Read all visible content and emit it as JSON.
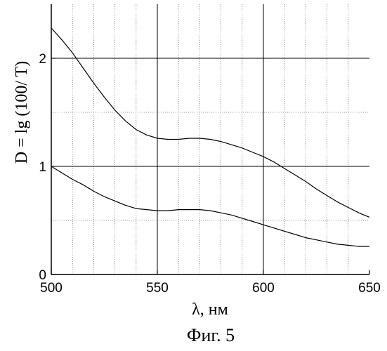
{
  "chart_data": {
    "type": "line",
    "xlabel": "λ, нм",
    "ylabel": "D = lg (100/ T)",
    "caption": "Фиг. 5",
    "xlim": [
      500,
      650
    ],
    "ylim": [
      0,
      2.5
    ],
    "x_ticks": [
      500,
      550,
      600,
      650
    ],
    "y_ticks": [
      0,
      1,
      2
    ],
    "major_grid_x": [
      550,
      600
    ],
    "major_grid_y": [
      1,
      2
    ],
    "minor_grid_x": [
      510,
      520,
      530,
      540,
      560,
      570,
      580,
      590,
      610,
      620,
      630,
      640
    ],
    "minor_grid_y": [
      0.5,
      1.5
    ],
    "series": [
      {
        "x": [
          500,
          505,
          510,
          515,
          520,
          525,
          530,
          535,
          540,
          545,
          550,
          555,
          560,
          565,
          570,
          575,
          580,
          585,
          590,
          595,
          600,
          605,
          610,
          615,
          620,
          625,
          630,
          635,
          640,
          645,
          650
        ],
        "y": [
          2.28,
          2.17,
          2.05,
          1.91,
          1.77,
          1.64,
          1.52,
          1.42,
          1.34,
          1.29,
          1.26,
          1.25,
          1.25,
          1.26,
          1.26,
          1.25,
          1.23,
          1.2,
          1.17,
          1.13,
          1.09,
          1.04,
          0.98,
          0.92,
          0.86,
          0.79,
          0.73,
          0.67,
          0.62,
          0.57,
          0.53
        ]
      },
      {
        "x": [
          500,
          505,
          510,
          515,
          520,
          525,
          530,
          535,
          540,
          545,
          550,
          555,
          560,
          565,
          570,
          575,
          580,
          585,
          590,
          595,
          600,
          605,
          610,
          615,
          620,
          625,
          630,
          635,
          640,
          645,
          650
        ],
        "y": [
          1.0,
          0.94,
          0.88,
          0.83,
          0.77,
          0.72,
          0.68,
          0.64,
          0.61,
          0.6,
          0.59,
          0.59,
          0.6,
          0.6,
          0.6,
          0.59,
          0.57,
          0.55,
          0.52,
          0.49,
          0.46,
          0.43,
          0.4,
          0.37,
          0.34,
          0.32,
          0.3,
          0.28,
          0.27,
          0.26,
          0.26
        ]
      }
    ]
  }
}
